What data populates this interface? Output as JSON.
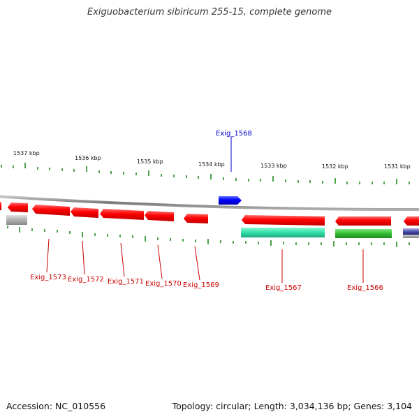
{
  "title": "Exiguobacterium sibiricum 255-15, complete genome",
  "footer": {
    "accession": "Accession: NC_010556",
    "summary": "Topology: circular; Length: 3,034,136 bp; Genes: 3,104"
  },
  "colors": {
    "forward_gene": "#0000ff",
    "reverse_gene": "#ff0000",
    "forward_label": "#0000cc",
    "reverse_label": "#cc0000",
    "tick": "#228b22",
    "backbone": "#808080",
    "feature_cyan": "#40e0b0",
    "feature_green": "#33cc33",
    "feature_gray": "#b0b0b0",
    "feature_purple": "#8080c0"
  },
  "kbp_labels": [
    "1537 kbp",
    "1536 kbp",
    "1535 kbp",
    "1534 kbp",
    "1533 kbp",
    "1532 kbp",
    "1531 kbp"
  ],
  "gene_labels": [
    {
      "text": "Exig_1568",
      "strand": "forward"
    },
    {
      "text": "Exig_1573",
      "strand": "reverse"
    },
    {
      "text": "Exig_1572",
      "strand": "reverse"
    },
    {
      "text": "Exig_1571",
      "strand": "reverse"
    },
    {
      "text": "Exig_1570",
      "strand": "reverse"
    },
    {
      "text": "Exig_1569",
      "strand": "reverse"
    },
    {
      "text": "Exig_1567",
      "strand": "reverse"
    },
    {
      "text": "Exig_1566",
      "strand": "reverse"
    }
  ]
}
